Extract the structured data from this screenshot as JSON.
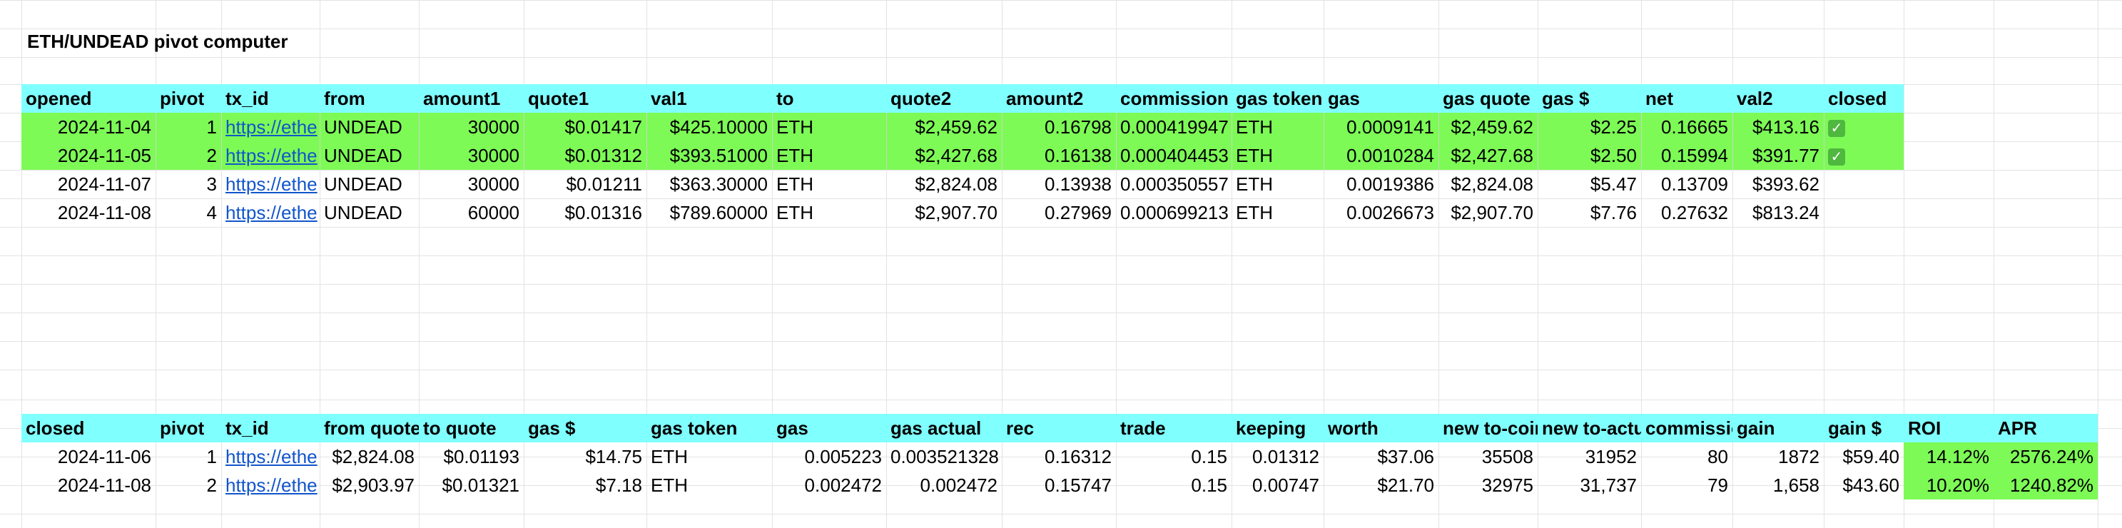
{
  "title": "ETH/UNDEAD  pivot computer",
  "colors": {
    "header_bg": "#80ffff",
    "highlight_green": "#7dfa56",
    "link": "#1155cc",
    "gridline": "#e2e3e3"
  },
  "table1": {
    "headers": [
      "opened",
      "pivot",
      "tx_id",
      "from",
      "amount1",
      "quote1",
      "val1",
      "to",
      "quote2",
      "amount2",
      "commission",
      "gas token",
      "gas",
      "gas quote",
      "gas $",
      "net",
      "val2",
      "closed"
    ],
    "rows": [
      {
        "highlight": true,
        "cells": [
          "2024-11-04",
          "1",
          "https://ethe",
          "UNDEAD",
          "30000",
          "$0.01417",
          "$425.10000",
          "ETH",
          "$2,459.62",
          "0.16798",
          "0.000419947",
          "ETH",
          "0.0009141",
          "$2,459.62",
          "$2.25",
          "0.16665",
          "$413.16",
          "✓"
        ]
      },
      {
        "highlight": true,
        "cells": [
          "2024-11-05",
          "2",
          "https://ethe",
          "UNDEAD",
          "30000",
          "$0.01312",
          "$393.51000",
          "ETH",
          "$2,427.68",
          "0.16138",
          "0.000404453",
          "ETH",
          "0.0010284",
          "$2,427.68",
          "$2.50",
          "0.15994",
          "$391.77",
          "✓"
        ]
      },
      {
        "highlight": false,
        "cells": [
          "2024-11-07",
          "3",
          "https://ethe",
          "UNDEAD",
          "30000",
          "$0.01211",
          "$363.30000",
          "ETH",
          "$2,824.08",
          "0.13938",
          "0.000350557",
          "ETH",
          "0.0019386",
          "$2,824.08",
          "$5.47",
          "0.13709",
          "$393.62",
          ""
        ]
      },
      {
        "highlight": false,
        "cells": [
          "2024-11-08",
          "4",
          "https://ethe",
          "UNDEAD",
          "60000",
          "$0.01316",
          "$789.60000",
          "ETH",
          "$2,907.70",
          "0.27969",
          "0.000699213",
          "ETH",
          "0.0026673",
          "$2,907.70",
          "$7.76",
          "0.27632",
          "$813.24",
          ""
        ]
      }
    ]
  },
  "table2": {
    "headers": [
      "closed",
      "pivot",
      "tx_id",
      "from quote",
      "to quote",
      "gas $",
      "gas token",
      "gas",
      "gas actual",
      "rec",
      "trade",
      "keeping",
      "worth",
      "new to-coin",
      "new to-actual",
      "commission",
      "gain",
      "gain $",
      "ROI",
      "APR"
    ],
    "rows": [
      {
        "cells": [
          "2024-11-06",
          "1",
          "https://ethe",
          "$2,824.08",
          "$0.01193",
          "$14.75",
          "ETH",
          "0.005223",
          "0.003521328",
          "0.16312",
          "0.15",
          "0.01312",
          "$37.06",
          "35508",
          "31952",
          "80",
          "1872",
          "$59.40",
          "14.12%",
          "2576.24%"
        ]
      },
      {
        "cells": [
          "2024-11-08",
          "2",
          "https://ethe",
          "$2,903.97",
          "$0.01321",
          "$7.18",
          "ETH",
          "0.002472",
          "0.002472",
          "0.15747",
          "0.15",
          "0.00747",
          "$21.70",
          "32975",
          "31,737",
          "79",
          "1,658",
          "$43.60",
          "10.20%",
          "1240.82%"
        ]
      }
    ]
  }
}
